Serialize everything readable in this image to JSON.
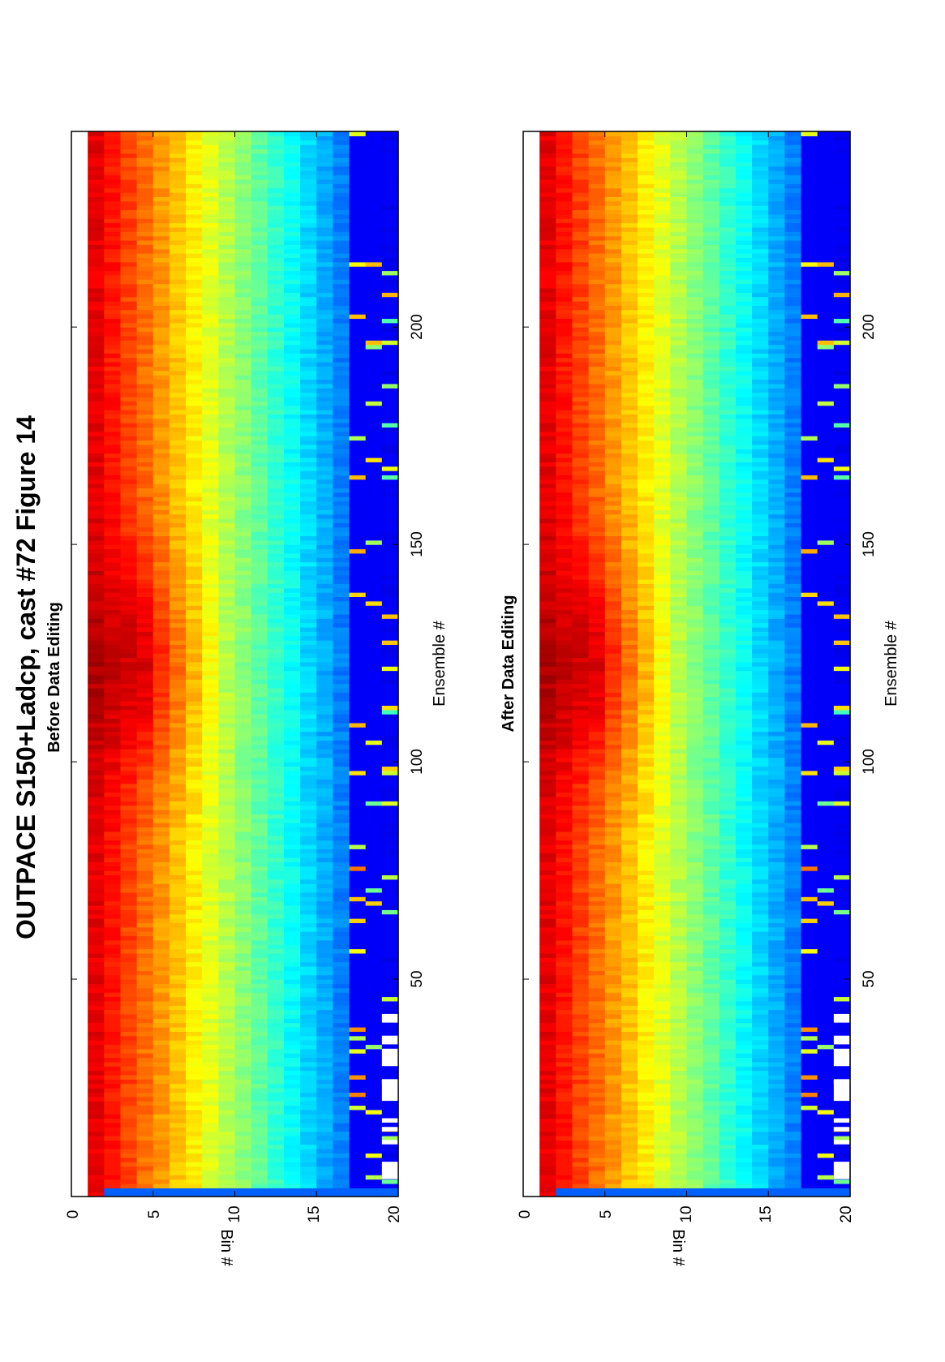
{
  "figure": {
    "title": "OUTPACE S150+Ladcp, cast #72  Figure 14"
  },
  "colormap": "jet",
  "chart_data": [
    {
      "type": "heatmap",
      "title": "Before Data Editing",
      "xlabel": "Ensemble #",
      "ylabel": "Bin #",
      "xlim": [
        0,
        245
      ],
      "ylim": [
        0,
        20
      ],
      "xticks": [
        50,
        100,
        150,
        200
      ],
      "yticks": [
        0,
        5,
        10,
        15,
        20
      ],
      "gaps": [
        {
          "x": [
            4,
            8
          ],
          "bins": [
            19,
            20
          ]
        },
        {
          "x": [
            12,
            13
          ],
          "bins": [
            19,
            20
          ]
        },
        {
          "x": [
            15,
            16
          ],
          "bins": [
            19,
            20
          ]
        },
        {
          "x": [
            17,
            18
          ],
          "bins": [
            19,
            20
          ]
        },
        {
          "x": [
            22,
            27
          ],
          "bins": [
            19,
            20
          ]
        },
        {
          "x": [
            30,
            34
          ],
          "bins": [
            19,
            20
          ]
        },
        {
          "x": [
            35,
            37
          ],
          "bins": [
            19,
            20
          ]
        },
        {
          "x": [
            40,
            42
          ],
          "bins": [
            19,
            20
          ]
        }
      ]
    },
    {
      "type": "heatmap",
      "title": "After Data Editing",
      "xlabel": "Ensemble #",
      "ylabel": "Bin #",
      "xlim": [
        0,
        245
      ],
      "ylim": [
        0,
        20
      ],
      "xticks": [
        50,
        100,
        150,
        200
      ],
      "yticks": [
        0,
        5,
        10,
        15,
        20
      ],
      "gaps": [
        {
          "x": [
            4,
            8
          ],
          "bins": [
            19,
            20
          ]
        },
        {
          "x": [
            12,
            13
          ],
          "bins": [
            19,
            20
          ]
        },
        {
          "x": [
            15,
            16
          ],
          "bins": [
            19,
            20
          ]
        },
        {
          "x": [
            17,
            18
          ],
          "bins": [
            19,
            20
          ]
        },
        {
          "x": [
            22,
            27
          ],
          "bins": [
            19,
            20
          ]
        },
        {
          "x": [
            30,
            34
          ],
          "bins": [
            19,
            20
          ]
        },
        {
          "x": [
            35,
            37
          ],
          "bins": [
            19,
            20
          ]
        },
        {
          "x": [
            40,
            42
          ],
          "bins": [
            19,
            20
          ]
        }
      ]
    }
  ]
}
